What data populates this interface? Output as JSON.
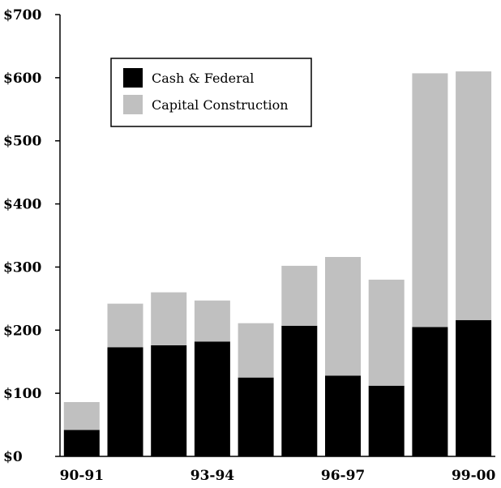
{
  "chart_data": {
    "type": "bar",
    "stacked": true,
    "categories": [
      "90-91",
      "91-92",
      "92-93",
      "93-94",
      "94-95",
      "95-96",
      "96-97",
      "97-98",
      "98-99",
      "99-00"
    ],
    "x_tick_labels": [
      "90-91",
      "",
      "",
      "93-94",
      "",
      "",
      "96-97",
      "",
      "",
      "99-00"
    ],
    "series": [
      {
        "name": "Cash & Federal",
        "color": "#000000",
        "values": [
          42,
          173,
          176,
          182,
          125,
          207,
          128,
          112,
          205,
          216
        ]
      },
      {
        "name": "Capital Construction",
        "color": "#c0c0c0",
        "values": [
          44,
          69,
          84,
          65,
          86,
          95,
          188,
          168,
          402,
          394
        ]
      }
    ],
    "y_ticks": [
      "$0",
      "$100",
      "$200",
      "$300",
      "$400",
      "$500",
      "$600",
      "$700"
    ],
    "y_tick_values": [
      0,
      100,
      200,
      300,
      400,
      500,
      600,
      700
    ],
    "ylim": [
      0,
      700
    ],
    "grid": false,
    "legend_position": "top-left"
  }
}
